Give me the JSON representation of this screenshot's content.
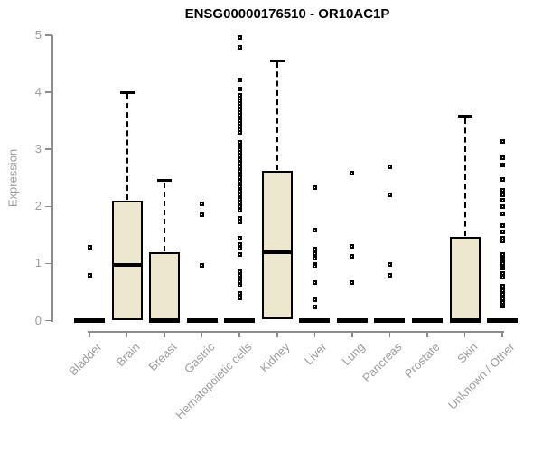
{
  "chart_data": {
    "type": "boxplot",
    "title": "ENSG00000176510 - OR10AC1P",
    "ylabel": "Expression",
    "xlabel": "",
    "ylim": [
      0,
      5
    ],
    "yticks": [
      0,
      1,
      2,
      3,
      4,
      5
    ],
    "grid": false,
    "legend": "none",
    "box_fill_color": "#EDE7CD",
    "box_border_color": "#000000",
    "axis_color": "#8c8c8c",
    "tick_label_color": "#9b9b9b",
    "categories": [
      "Bladder",
      "Brain",
      "Breast",
      "Gastric",
      "Hematopoietic cells",
      "Kidney",
      "Liver",
      "Lung",
      "Pancreas",
      "Prostate",
      "Skin",
      "Unknown / Other"
    ],
    "series": [
      {
        "category": "Bladder",
        "q1": 0,
        "median": 0,
        "q3": 0,
        "whisker_low": 0,
        "whisker_high": 0,
        "outliers": [
          1.29,
          0.79
        ]
      },
      {
        "category": "Brain",
        "q1": 0,
        "median": 0.97,
        "q3": 2.1,
        "whisker_low": 0,
        "whisker_high": 4.0,
        "outliers": []
      },
      {
        "category": "Breast",
        "q1": 0,
        "median": 0,
        "q3": 1.2,
        "whisker_low": 0,
        "whisker_high": 2.45,
        "outliers": []
      },
      {
        "category": "Gastric",
        "q1": 0,
        "median": 0,
        "q3": 0,
        "whisker_low": 0,
        "whisker_high": 0,
        "outliers": [
          2.04,
          1.85,
          0.97
        ]
      },
      {
        "category": "Hematopoietic cells",
        "q1": 0,
        "median": 0,
        "q3": 0,
        "whisker_low": 0,
        "whisker_high": 0,
        "outliers": [
          4.96,
          4.78,
          4.22,
          4.05,
          3.95,
          3.9,
          3.85,
          3.8,
          3.75,
          3.7,
          3.65,
          3.6,
          3.55,
          3.5,
          3.45,
          3.4,
          3.35,
          3.3,
          3.12,
          3.06,
          3.0,
          2.94,
          2.88,
          2.82,
          2.76,
          2.7,
          2.62,
          2.56,
          2.5,
          2.44,
          2.34,
          2.27,
          2.2,
          2.13,
          2.06,
          2.0,
          1.94,
          1.79,
          1.72,
          1.44,
          1.33,
          1.26,
          1.15,
          0.86,
          0.8,
          0.74,
          0.68,
          0.62,
          0.48,
          0.4
        ]
      },
      {
        "category": "Kidney",
        "q1": 0.02,
        "median": 1.2,
        "q3": 2.62,
        "whisker_low": 0.02,
        "whisker_high": 4.55,
        "outliers": []
      },
      {
        "category": "Liver",
        "q1": 0,
        "median": 0,
        "q3": 0,
        "whisker_low": 0,
        "whisker_high": 0,
        "outliers": [
          2.33,
          1.58,
          1.25,
          1.17,
          1.1,
          0.98,
          0.95,
          0.67,
          0.36,
          0.24
        ]
      },
      {
        "category": "Lung",
        "q1": 0,
        "median": 0,
        "q3": 0,
        "whisker_low": 0,
        "whisker_high": 0,
        "outliers": [
          2.59,
          1.3,
          1.12,
          0.66
        ]
      },
      {
        "category": "Pancreas",
        "q1": 0,
        "median": 0,
        "q3": 0,
        "whisker_low": 0,
        "whisker_high": 0,
        "outliers": [
          2.69,
          2.21,
          0.98,
          0.8
        ]
      },
      {
        "category": "Prostate",
        "q1": 0,
        "median": 0,
        "q3": 0,
        "whisker_low": 0,
        "whisker_high": 0,
        "outliers": []
      },
      {
        "category": "Skin",
        "q1": 0,
        "median": 0,
        "q3": 1.46,
        "whisker_low": 0,
        "whisker_high": 3.58,
        "outliers": []
      },
      {
        "category": "Unknown / Other",
        "q1": 0,
        "median": 0,
        "q3": 0,
        "whisker_low": 0,
        "whisker_high": 0,
        "outliers": [
          3.14,
          2.85,
          2.72,
          2.48,
          2.29,
          2.2,
          2.1,
          2.0,
          1.87,
          1.66,
          1.55,
          1.45,
          1.39,
          1.16,
          1.08,
          1.0,
          0.92,
          0.83,
          0.76,
          0.6,
          0.53,
          0.46,
          0.38,
          0.31,
          0.26
        ]
      }
    ]
  }
}
